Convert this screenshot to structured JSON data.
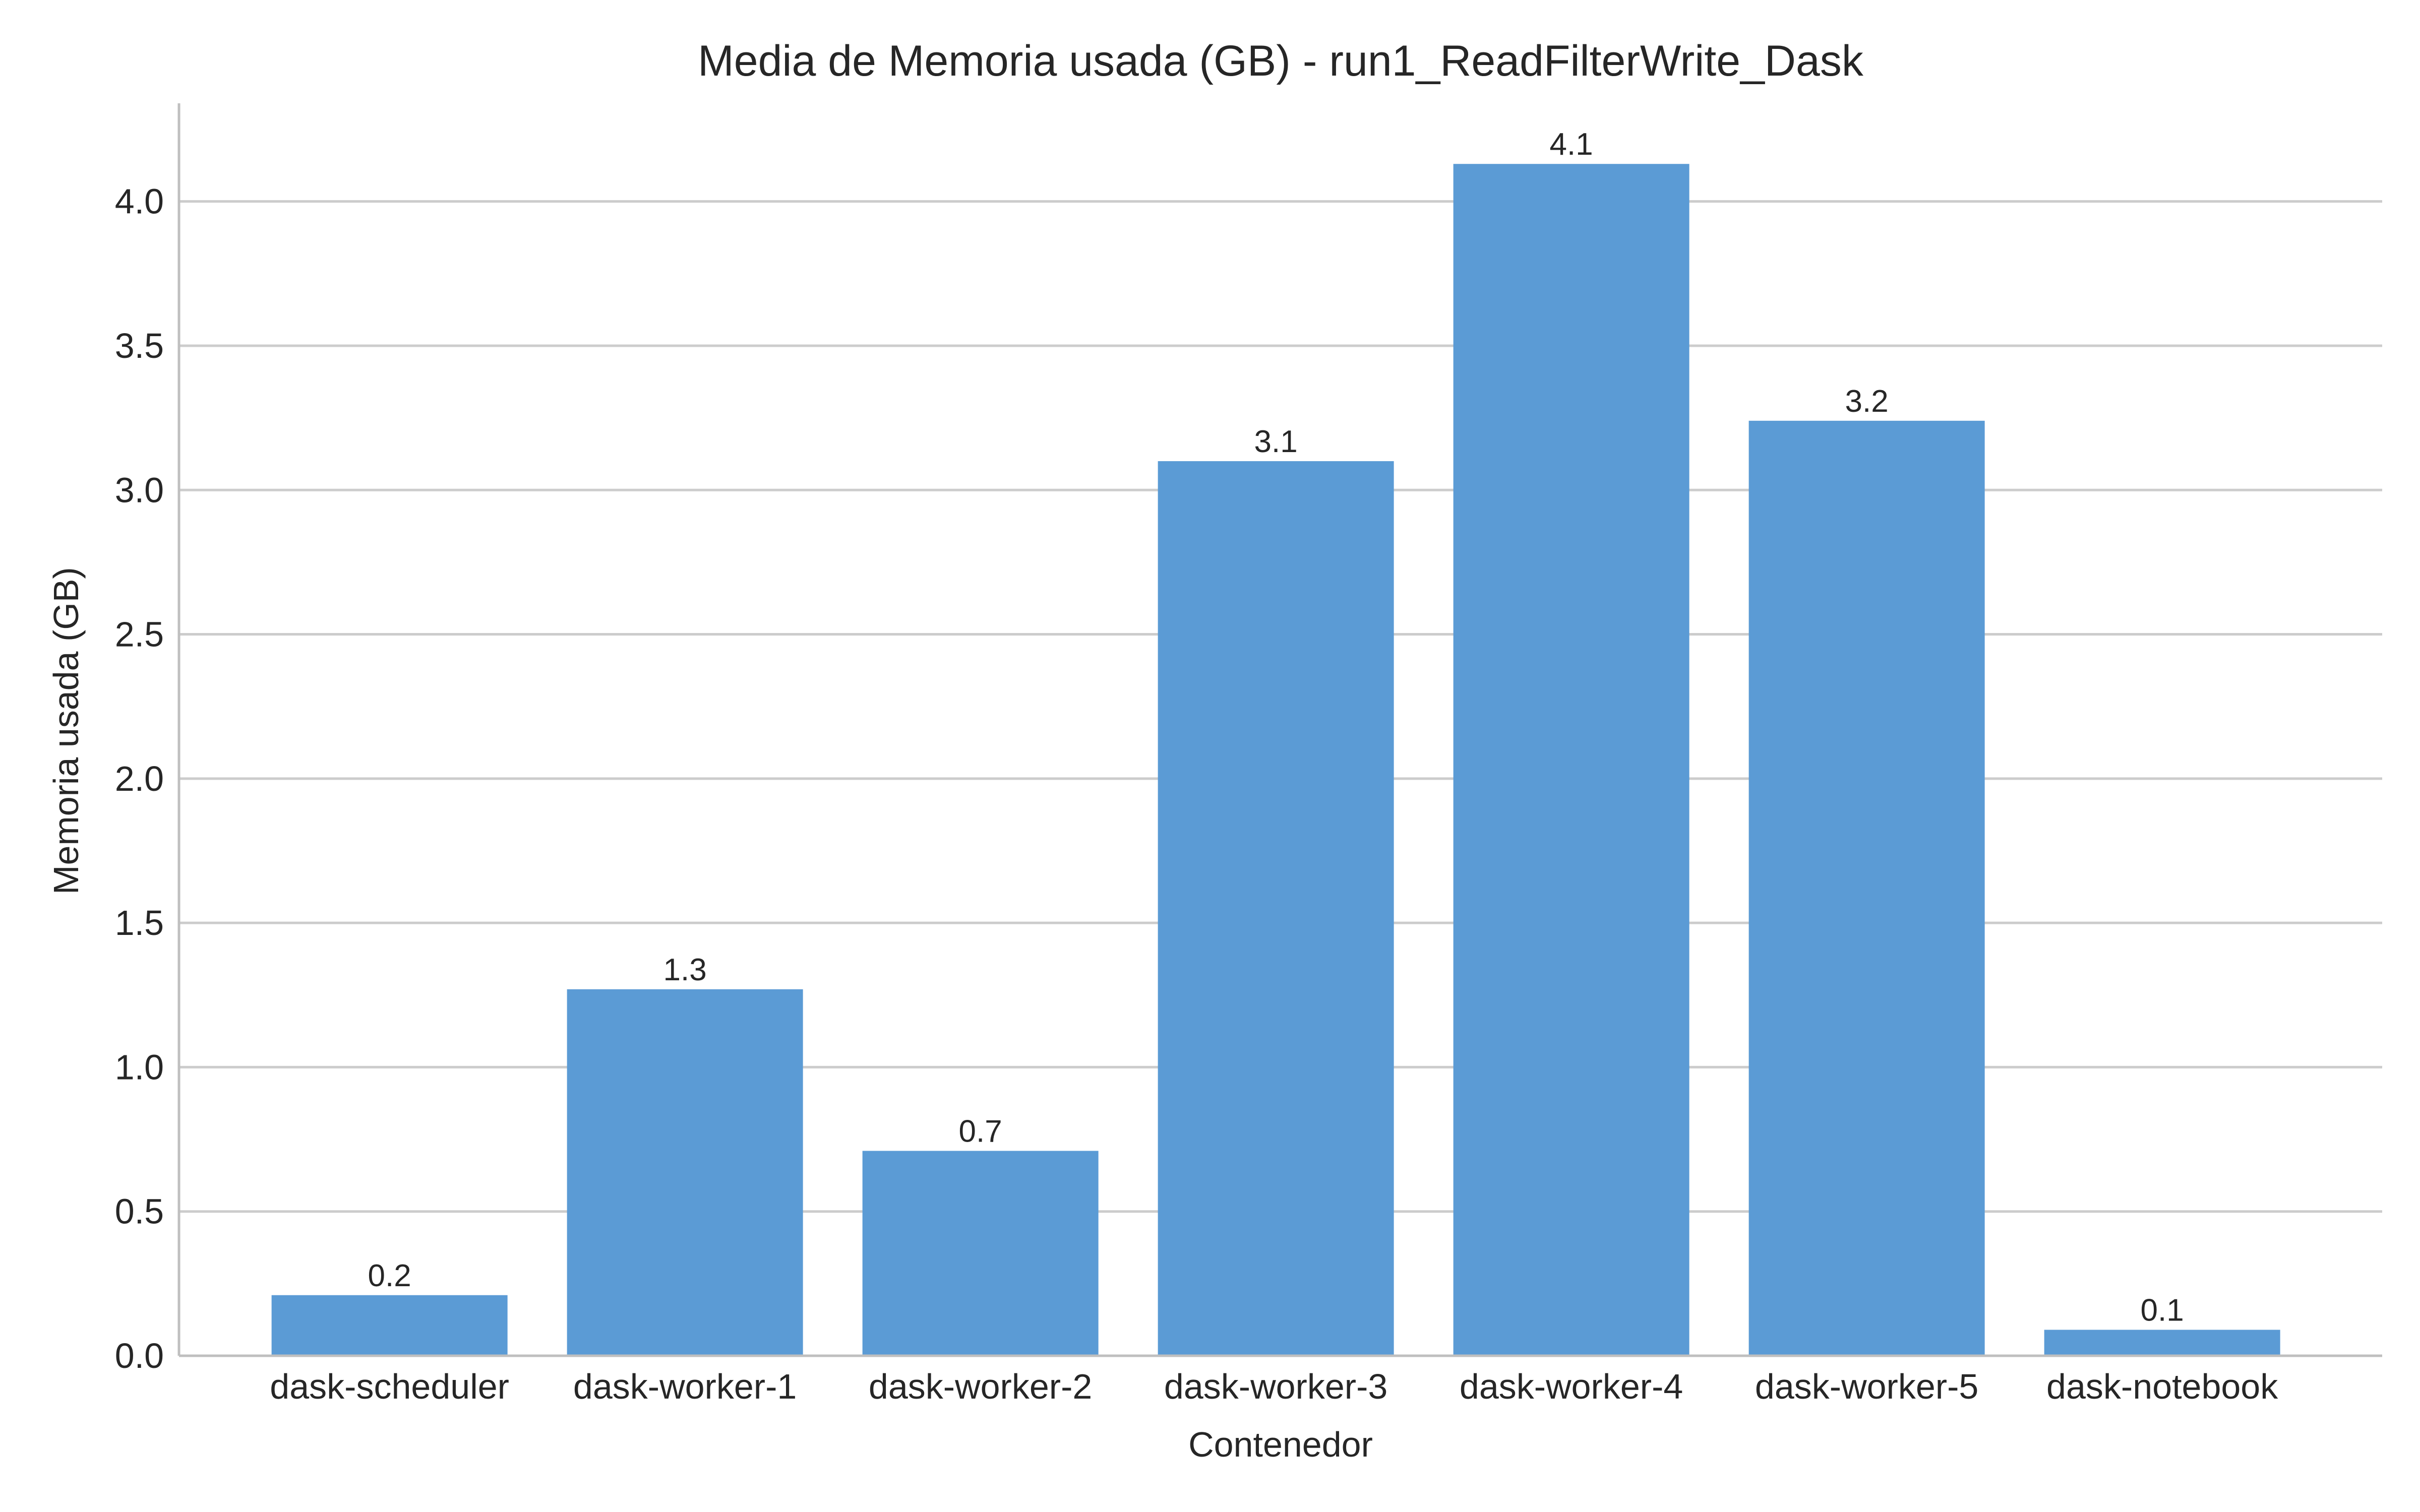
{
  "chart_data": {
    "type": "bar",
    "title": "Media de Memoria usada (GB) - run1_ReadFilterWrite_Dask",
    "xlabel": "Contenedor",
    "ylabel": "Memoria usada (GB)",
    "categories": [
      "dask-scheduler",
      "dask-worker-1",
      "dask-worker-2",
      "dask-worker-3",
      "dask-worker-4",
      "dask-worker-5",
      "dask-notebook"
    ],
    "values": [
      0.21,
      1.27,
      0.71,
      3.1,
      4.13,
      3.24,
      0.09
    ],
    "data_labels": [
      "0.2",
      "1.3",
      "0.7",
      "3.1",
      "4.1",
      "3.2",
      "0.1"
    ],
    "ylim": [
      0,
      4.34
    ],
    "yticks": [
      0.0,
      0.5,
      1.0,
      1.5,
      2.0,
      2.5,
      3.0,
      3.5,
      4.0
    ],
    "ytick_labels": [
      "0.0",
      "0.5",
      "1.0",
      "1.5",
      "2.0",
      "2.5",
      "3.0",
      "3.5",
      "4.0"
    ],
    "grid": "horizontal",
    "bar_color": "#5b9bd5"
  }
}
